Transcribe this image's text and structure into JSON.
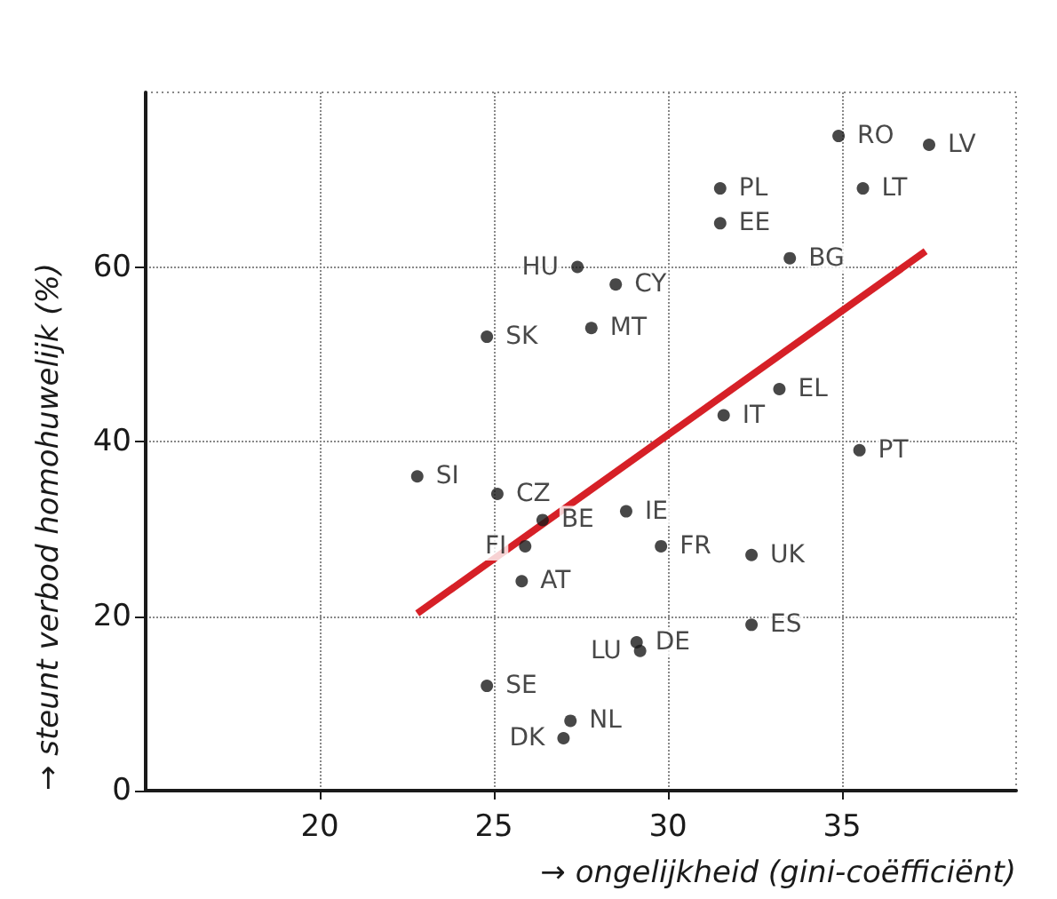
{
  "chart_data": {
    "type": "scatter",
    "xlabel": "→ ongelijkheid (gini-coëfficiënt)",
    "ylabel": "→ steunt verbod homohuwelijk (%)",
    "xlim": [
      15,
      40
    ],
    "xticks": [
      20,
      25,
      30,
      35
    ],
    "ylim": [
      0,
      80
    ],
    "yticks": [
      0,
      20,
      40,
      60
    ],
    "grid": true,
    "series": [
      {
        "type": "scatter",
        "color": "#1a1a1a",
        "marker": "circle",
        "x": [
          34.9,
          37.5,
          31.5,
          35.6,
          31.5,
          33.5,
          27.4,
          28.5,
          24.8,
          27.8,
          33.2,
          31.6,
          35.5,
          22.8,
          25.1,
          26.4,
          28.8,
          25.9,
          29.8,
          32.4,
          25.8,
          32.4,
          29.1,
          29.2,
          24.8,
          27.2,
          27.0
        ],
        "values": [
          75,
          74,
          69,
          69,
          65,
          61,
          60,
          58,
          52,
          53,
          46,
          43,
          39,
          36,
          34,
          31,
          32,
          28,
          28,
          27,
          24,
          19,
          17,
          16,
          12,
          8,
          6
        ],
        "value_labels": [
          "RO",
          "LV",
          "PL",
          "LT",
          "EE",
          "BG",
          "HU",
          "CY",
          "SK",
          "MT",
          "EL",
          "IT",
          "PT",
          "SI",
          "CZ",
          "BE",
          "IE",
          "FI",
          "FR",
          "UK",
          "AT",
          "ES",
          "DE",
          "LU",
          "SE",
          "NL",
          "DK"
        ]
      },
      {
        "type": "line",
        "color": "#d62027",
        "marker": "none",
        "line_style": "solid",
        "x": [
          22.8,
          37.4
        ],
        "values": [
          20.3,
          61.8
        ]
      }
    ]
  }
}
